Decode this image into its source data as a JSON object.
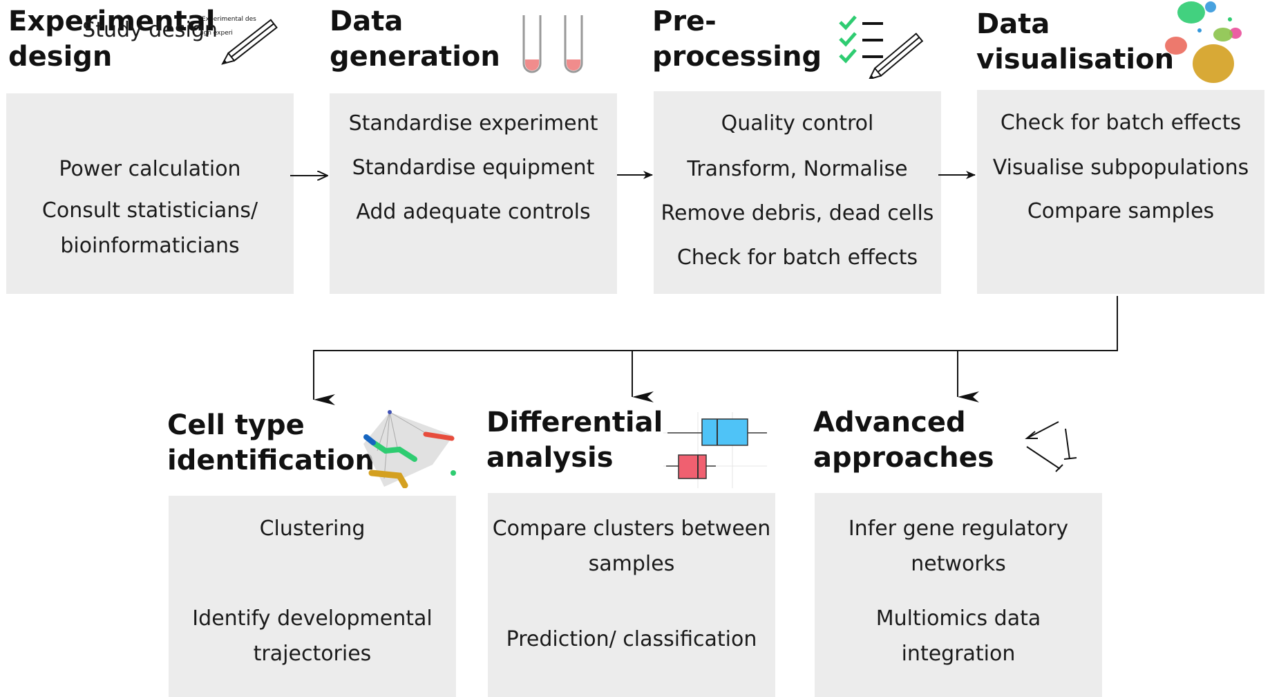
{
  "stages": [
    {
      "id": "experimental-design",
      "title": "Experimental\ndesign",
      "items": [
        "Study design",
        "Power calculation",
        "Consult statisticians/\nbioinformaticians"
      ]
    },
    {
      "id": "data-generation",
      "title": "Data\ngeneration",
      "items": [
        "Standardise experiment",
        "Standardise equipment",
        "Add adequate controls"
      ]
    },
    {
      "id": "pre-processing",
      "title": "Pre-\nprocessing",
      "items": [
        "Quality control",
        "Transform, Normalise",
        "Remove debris, dead cells",
        "Check for batch effects"
      ]
    },
    {
      "id": "data-visualisation",
      "title": "Data\nvisualisation",
      "items": [
        "Check for batch effects",
        "Visualise subpopulations",
        "Compare samples"
      ]
    },
    {
      "id": "cell-type-identification",
      "title": "Cell type\nidentification",
      "items": [
        "Clustering",
        "Identify developmental\ntrajectories"
      ]
    },
    {
      "id": "differential-analysis",
      "title": "Differential\nanalysis",
      "items": [
        "Compare clusters between\nsamples",
        "Prediction/ classification"
      ]
    },
    {
      "id": "advanced-approaches",
      "title": "Advanced\napproaches",
      "items": [
        "Infer gene regulatory\nnetworks",
        "Multiomics data\nintegration"
      ]
    }
  ],
  "icons": {
    "notepad_text_line1": "Experimental des",
    "notepad_text_line2": "ign experi",
    "tube_liquid_color": "#f08c8c",
    "check_color": "#2ecc71",
    "umap_colors": [
      "#2ecc71",
      "#3498db",
      "#e84393",
      "#f0a4ba",
      "#e74c3c",
      "#d4a020",
      "#8bc34a"
    ],
    "boxplot_colors": [
      "#4fc3f7",
      "#f06070"
    ],
    "network_colors": [
      "#2ecc71",
      "#1565c0",
      "#e74c3c",
      "#d4a020"
    ]
  },
  "colors": {
    "box_background": "#ececec",
    "arrow": "#111111"
  }
}
